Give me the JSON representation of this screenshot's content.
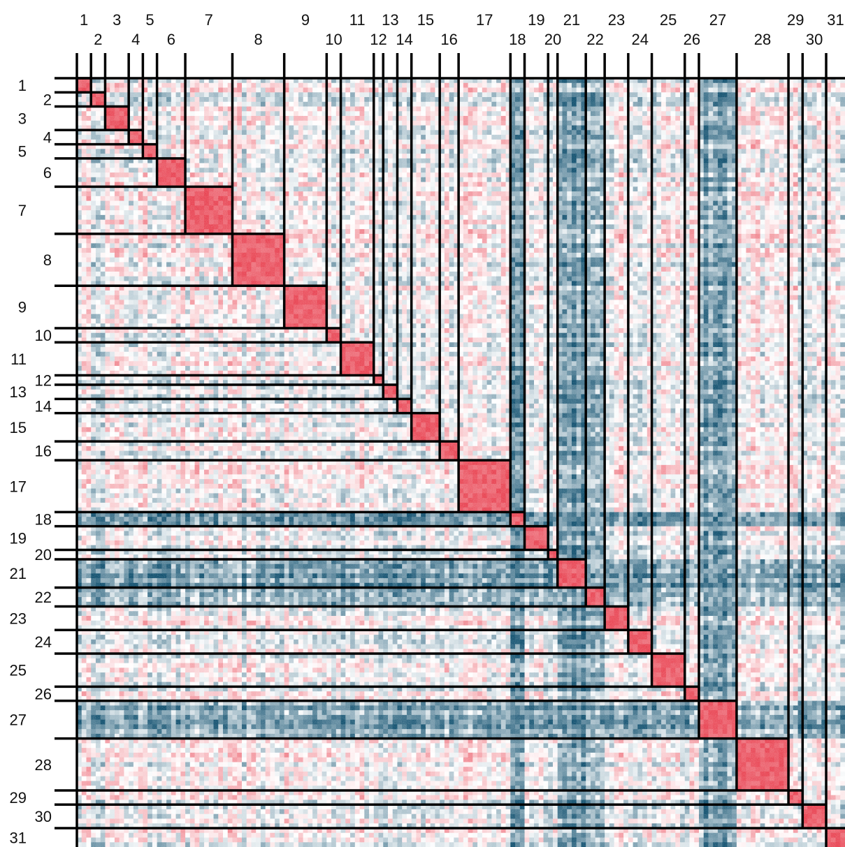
{
  "chart_data": {
    "type": "heatmap",
    "title": "",
    "xlabel": "",
    "ylabel": "",
    "cluster_labels": [
      "1",
      "2",
      "3",
      "4",
      "5",
      "6",
      "7",
      "8",
      "9",
      "10",
      "11",
      "12",
      "13",
      "14",
      "15",
      "16",
      "17",
      "18",
      "19",
      "20",
      "21",
      "22",
      "23",
      "24",
      "25",
      "26",
      "27",
      "28",
      "29",
      "30",
      "31"
    ],
    "cluster_sizes": [
      3,
      3,
      5,
      3,
      3,
      6,
      10,
      11,
      9,
      3,
      7,
      2,
      3,
      3,
      6,
      4,
      11,
      3,
      5,
      2,
      6,
      4,
      5,
      5,
      7,
      3,
      8,
      11,
      3,
      5,
      4
    ],
    "colormap": {
      "positive": "#e8404f",
      "neutral": "#ffffff",
      "negative": "#0f4f6e"
    },
    "diagonal_blocks_correlated": true,
    "anticorrelated_clusters": [
      "18",
      "21",
      "22",
      "27"
    ],
    "grid": false,
    "legend": "none"
  }
}
